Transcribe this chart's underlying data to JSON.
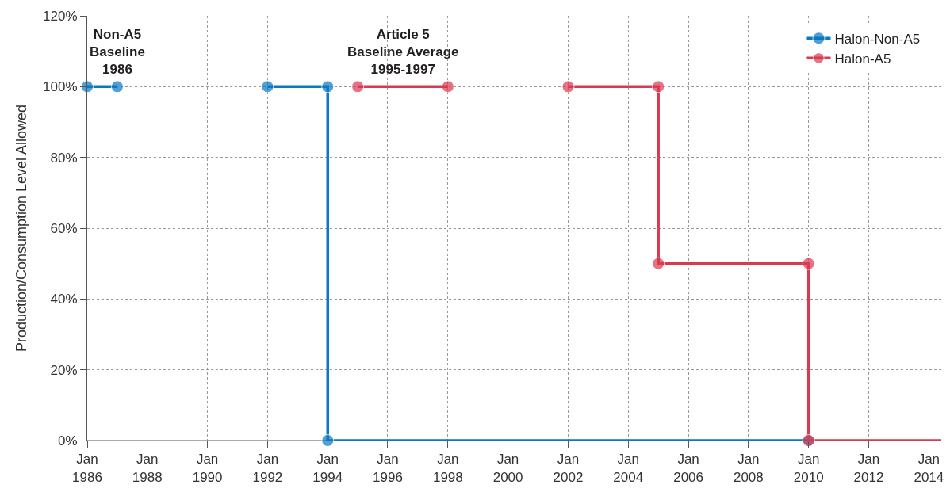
{
  "chart_data": {
    "type": "line",
    "ylabel": "Production/Consumption Level Allowed",
    "series": [
      {
        "name": "Halon-Non-A5",
        "color": "#0a79c1",
        "x": [
          "1986-01-01",
          "1987-01-01",
          "1990-01-01",
          "1992-01-01",
          "1994-01-01",
          "1994-01-01",
          "2010-01-01"
        ],
        "values": [
          100,
          100,
          null,
          100,
          100,
          0,
          0
        ]
      },
      {
        "name": "Halon-A5",
        "color": "#d93a4f",
        "x": [
          "1995-01-01",
          "1998-01-01",
          "2000-01-01",
          "2002-01-01",
          "2005-01-01",
          "2005-01-01",
          "2010-01-01",
          "2010-01-01",
          "2014-06-01"
        ],
        "values": [
          100,
          100,
          null,
          100,
          100,
          50,
          50,
          0,
          0
        ]
      }
    ],
    "xlim": [
      "1986-01-01",
      "2014-06-01"
    ],
    "xticks": [
      {
        "value": "1986-01-01",
        "label": "Jan\n1986"
      },
      {
        "value": "1988-01-01",
        "label": "Jan\n1988"
      },
      {
        "value": "1990-01-01",
        "label": "Jan\n1990"
      },
      {
        "value": "1992-01-01",
        "label": "Jan\n1992"
      },
      {
        "value": "1994-01-01",
        "label": "Jan\n1994"
      },
      {
        "value": "1996-01-01",
        "label": "Jan\n1996"
      },
      {
        "value": "1998-01-01",
        "label": "Jan\n1998"
      },
      {
        "value": "2000-01-01",
        "label": "Jan\n2000"
      },
      {
        "value": "2002-01-01",
        "label": "Jan\n2002"
      },
      {
        "value": "2004-01-01",
        "label": "Jan\n2004"
      },
      {
        "value": "2006-01-01",
        "label": "Jan\n2006"
      },
      {
        "value": "2008-01-01",
        "label": "Jan\n2008"
      },
      {
        "value": "2010-01-01",
        "label": "Jan\n2010"
      },
      {
        "value": "2012-01-01",
        "label": "Jan\n2012"
      },
      {
        "value": "2014-01-01",
        "label": "Jan\n2014"
      }
    ],
    "ylim": [
      0,
      120
    ],
    "yticks": [
      {
        "value": 0,
        "label": "0%"
      },
      {
        "value": 20,
        "label": "20%"
      },
      {
        "value": 40,
        "label": "40%"
      },
      {
        "value": 60,
        "label": "60%"
      },
      {
        "value": 80,
        "label": "80%"
      },
      {
        "value": 100,
        "label": "100%"
      },
      {
        "value": 120,
        "label": "120%"
      }
    ],
    "annotations": [
      {
        "text": "Non-A5\nBaseline\n1986",
        "x": "1987-01-01",
        "y": 100
      },
      {
        "text": "Article 5\nBaseline Average\n1995-1997",
        "x": "1996-07-01",
        "y": 100
      }
    ],
    "grid": true,
    "legend": "top right",
    "marker": "circle",
    "line_style": "solid"
  }
}
